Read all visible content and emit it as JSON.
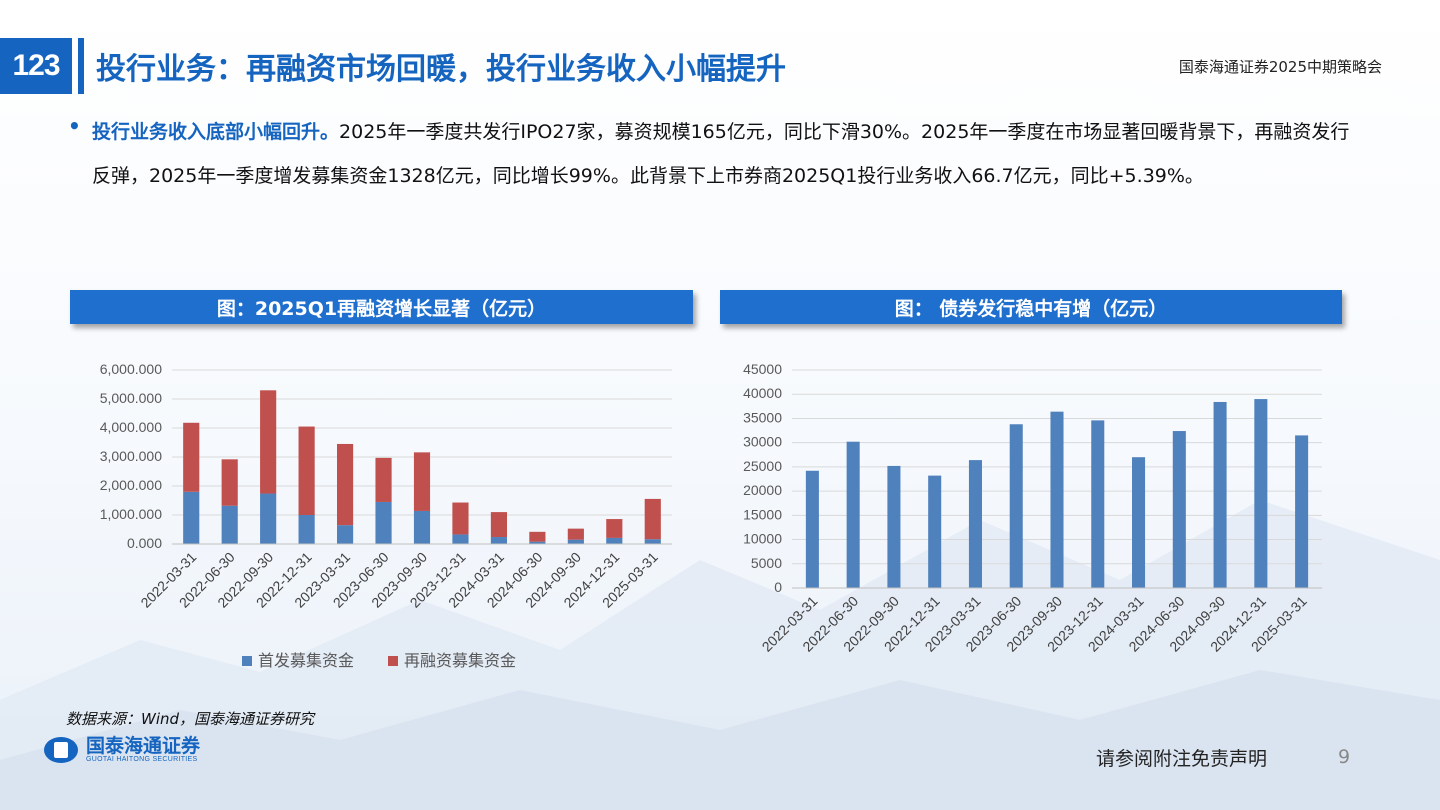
{
  "header": {
    "section_number": "123",
    "title": "投行业务：再融资市场回暖，投行业务收入小幅提升",
    "event": "国泰海通证券2025中期策略会"
  },
  "body": {
    "highlight": "投行业务收入底部小幅回升。",
    "text": "2025年一季度共发行IPO27家，募资规模165亿元，同比下滑30%。2025年一季度在市场显著回暖背景下，再融资发行反弹，2025年一季度增发募集资金1328亿元，同比增长99%。此背景下上市券商2025Q1投行业务收入66.7亿元，同比+5.39%。"
  },
  "charts": {
    "left_title": "图：2025Q1再融资增长显著（亿元）",
    "right_title": "图： 债券发行稳中有增（亿元）"
  },
  "chart_data": [
    {
      "type": "bar",
      "stacked": true,
      "categories": [
        "2022-03-31",
        "2022-06-30",
        "2022-09-30",
        "2022-12-31",
        "2023-03-31",
        "2023-06-30",
        "2023-09-30",
        "2023-12-31",
        "2024-03-31",
        "2024-06-30",
        "2024-09-30",
        "2024-12-31",
        "2025-03-31"
      ],
      "series": [
        {
          "name": "首发募集资金",
          "color": "#4f81bd",
          "values": [
            1800,
            1320,
            1740,
            1000,
            650,
            1450,
            1140,
            330,
            240,
            80,
            150,
            210,
            165
          ]
        },
        {
          "name": "再融资募集资金",
          "color": "#c0504d",
          "values": [
            2380,
            1600,
            3560,
            3050,
            2800,
            1520,
            2020,
            1100,
            860,
            340,
            380,
            650,
            1390
          ]
        }
      ],
      "ylim": [
        0,
        6000
      ],
      "yticks": [
        "0.000",
        "1,000.000",
        "2,000.000",
        "3,000.000",
        "4,000.000",
        "5,000.000",
        "6,000.000"
      ],
      "grid": true,
      "legend": "bottom"
    },
    {
      "type": "bar",
      "categories": [
        "2022-03-31",
        "2022-06-30",
        "2022-09-30",
        "2022-12-31",
        "2023-03-31",
        "2023-06-30",
        "2023-09-30",
        "2023-12-31",
        "2024-03-31",
        "2024-06-30",
        "2024-09-30",
        "2024-12-31",
        "2025-03-31"
      ],
      "series": [
        {
          "color": "#4f81bd",
          "values": [
            24200,
            30200,
            25200,
            23200,
            26400,
            33800,
            36400,
            34600,
            27000,
            32400,
            38400,
            39000,
            31500
          ]
        }
      ],
      "ylim": [
        0,
        45000
      ],
      "yticks": [
        "0",
        "5000",
        "10000",
        "15000",
        "20000",
        "25000",
        "30000",
        "35000",
        "40000",
        "45000"
      ],
      "grid": true
    }
  ],
  "footer": {
    "source": "数据来源：Wind，国泰海通证券研究",
    "logo_cn": "国泰海通证券",
    "logo_en": "GUOTAI HAITONG SECURITIES",
    "disclaimer": "请参阅附注免责声明",
    "page_number": "9"
  }
}
